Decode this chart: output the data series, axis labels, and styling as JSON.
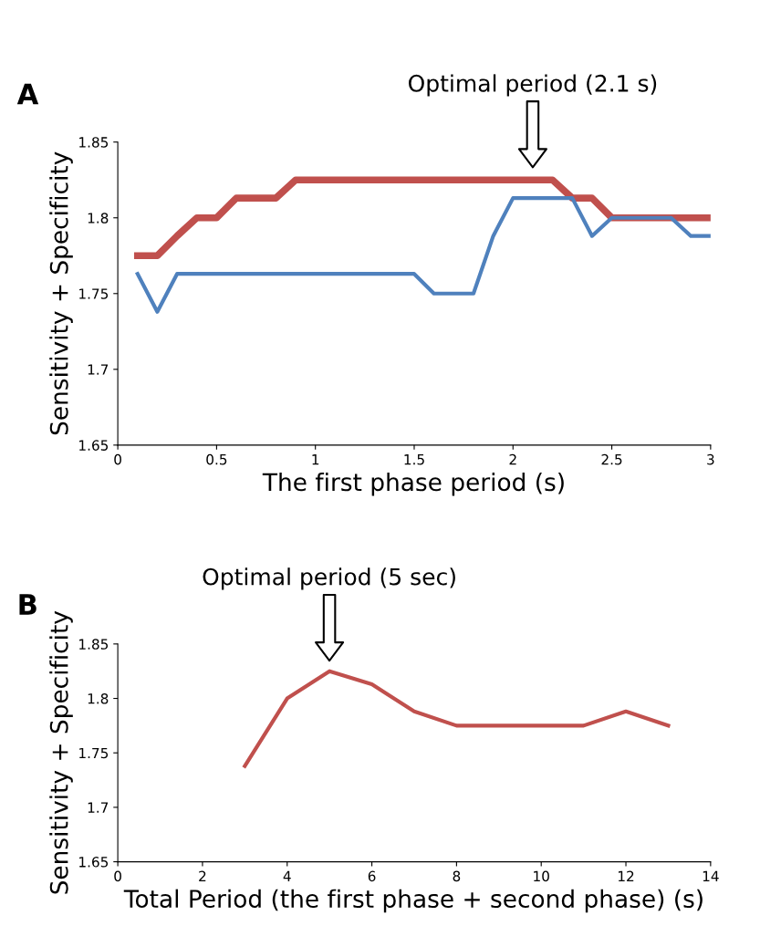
{
  "chart_data": [
    {
      "type": "line",
      "title": "A",
      "xlabel": "The first phase period (s)",
      "ylabel": "Sensitivity + Specificity",
      "xlim": [
        0,
        3
      ],
      "xticks": [
        0,
        0.5,
        1,
        1.5,
        2,
        2.5,
        3
      ],
      "ylim": [
        1.65,
        1.85
      ],
      "yticks": [
        1.65,
        1.7,
        1.75,
        1.8,
        1.85
      ],
      "grid": false,
      "legend": false,
      "marker": "none",
      "line_style": "solid",
      "x": [
        0.1,
        0.2,
        0.3,
        0.4,
        0.5,
        0.6,
        0.7,
        0.8,
        0.9,
        1.0,
        1.1,
        1.2,
        1.3,
        1.4,
        1.5,
        1.6,
        1.7,
        1.8,
        1.9,
        2.0,
        2.1,
        2.2,
        2.3,
        2.4,
        2.5,
        2.6,
        2.7,
        2.8,
        2.9,
        3.0
      ],
      "series": [
        {
          "color": "#c0504d",
          "values": [
            1.775,
            1.775,
            1.788,
            1.8,
            1.8,
            1.813,
            1.813,
            1.813,
            1.825,
            1.825,
            1.825,
            1.825,
            1.825,
            1.825,
            1.825,
            1.825,
            1.825,
            1.825,
            1.825,
            1.825,
            1.825,
            1.825,
            1.813,
            1.813,
            1.8,
            1.8,
            1.8,
            1.8,
            1.8,
            1.8
          ]
        },
        {
          "color": "#4f81bd",
          "values": [
            1.763,
            1.738,
            1.763,
            1.763,
            1.763,
            1.763,
            1.763,
            1.763,
            1.763,
            1.763,
            1.763,
            1.763,
            1.763,
            1.763,
            1.763,
            1.75,
            1.75,
            1.75,
            1.788,
            1.813,
            1.813,
            1.813,
            1.813,
            1.788,
            1.8,
            1.8,
            1.8,
            1.8,
            1.788,
            1.788
          ]
        }
      ],
      "annotations": [
        "Optimal period (2.1 s)"
      ]
    },
    {
      "type": "line",
      "title": "B",
      "xlabel": "Total Period (the first phase + second phase) (s)",
      "ylabel": "Sensitivity + Specificity",
      "xlim": [
        0,
        14
      ],
      "xticks": [
        0,
        2,
        4,
        6,
        8,
        10,
        12,
        14
      ],
      "ylim": [
        1.65,
        1.85
      ],
      "yticks": [
        1.65,
        1.7,
        1.75,
        1.8,
        1.85
      ],
      "grid": false,
      "legend": false,
      "marker": "none",
      "line_style": "solid",
      "x": [
        3,
        4,
        5,
        6,
        7,
        8,
        9,
        10,
        11,
        12,
        13
      ],
      "series": [
        {
          "color": "#c0504d",
          "values": [
            1.738,
            1.8,
            1.825,
            1.813,
            1.788,
            1.775,
            1.775,
            1.775,
            1.775,
            1.788,
            1.775
          ]
        }
      ],
      "annotations": [
        "Optimal period (5 sec)"
      ]
    }
  ]
}
